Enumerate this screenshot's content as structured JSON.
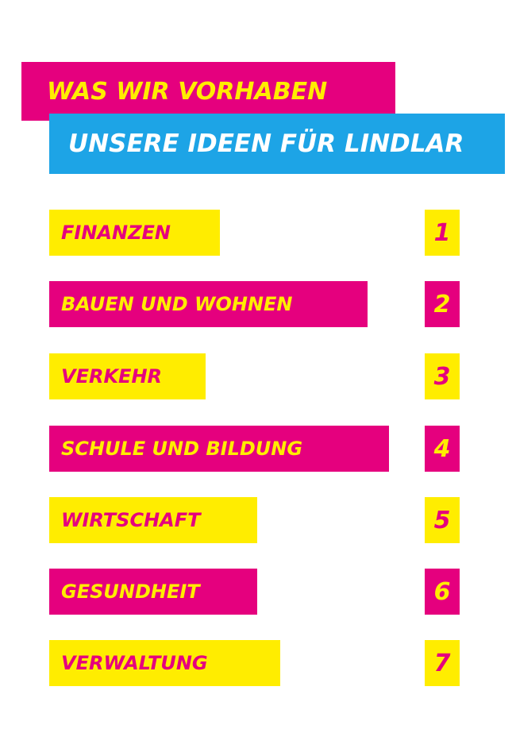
{
  "header": {
    "title": "WAS WIR VORHABEN",
    "subtitle": "UNSERE IDEEN FÜR LINDLAR"
  },
  "colors": {
    "magenta": "#e5007e",
    "yellow": "#ffed00",
    "cyan": "#1da4e6"
  },
  "topics": [
    {
      "label": "FINANZEN",
      "number": "1"
    },
    {
      "label": "BAUEN UND WOHNEN",
      "number": "2"
    },
    {
      "label": "VERKEHR",
      "number": "3"
    },
    {
      "label": "SCHULE UND BILDUNG",
      "number": "4"
    },
    {
      "label": "WIRTSCHAFT",
      "number": "5"
    },
    {
      "label": "GESUNDHEIT",
      "number": "6"
    },
    {
      "label": "VERWALTUNG",
      "number": "7"
    }
  ]
}
